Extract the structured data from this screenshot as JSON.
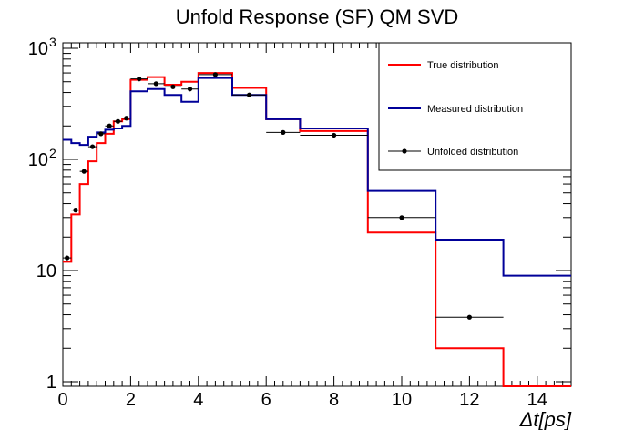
{
  "chart_data": {
    "type": "step",
    "title": "Unfold Response (SF) QM SVD",
    "xlabel": "Δt[ps]",
    "ylabel": "",
    "xlim": [
      0,
      15
    ],
    "ylim": [
      0.9,
      1100
    ],
    "yscale": "log",
    "x_ticks": [
      "0",
      "2",
      "4",
      "6",
      "8",
      "10",
      "12",
      "14"
    ],
    "y_ticks": [
      "1",
      "10",
      "10^2",
      "10^3"
    ],
    "legend_position": "top-right",
    "series": [
      {
        "name": "True distribution",
        "color": "#ff0000",
        "style": "histogram",
        "bin_edges": [
          0,
          0.25,
          0.5,
          0.75,
          1.0,
          1.25,
          1.5,
          1.75,
          2.0,
          2.5,
          3.0,
          3.5,
          4.0,
          5.0,
          6.0,
          7.0,
          9.0,
          11.0,
          13.0,
          15.0
        ],
        "values": [
          12,
          32,
          60,
          96,
          140,
          170,
          220,
          230,
          520,
          550,
          470,
          500,
          600,
          440,
          230,
          180,
          22,
          2,
          0.9
        ]
      },
      {
        "name": "Measured distribution",
        "color": "#000099",
        "style": "histogram",
        "bin_edges": [
          0,
          0.25,
          0.5,
          0.75,
          1.0,
          1.25,
          1.5,
          1.75,
          2.0,
          2.5,
          3.0,
          3.5,
          4.0,
          5.0,
          6.0,
          7.0,
          9.0,
          11.0,
          13.0,
          15.0
        ],
        "values": [
          150,
          140,
          135,
          160,
          175,
          185,
          190,
          200,
          410,
          430,
          380,
          330,
          540,
          380,
          230,
          190,
          52,
          19,
          9
        ]
      },
      {
        "name": "Unfolded distribution",
        "color": "#000000",
        "style": "markers",
        "x": [
          0.125,
          0.375,
          0.625,
          0.875,
          1.125,
          1.375,
          1.625,
          1.875,
          2.25,
          2.75,
          3.25,
          3.75,
          4.5,
          5.5,
          6.5,
          8.0,
          10.0,
          12.0
        ],
        "xerr": [
          0.125,
          0.125,
          0.125,
          0.125,
          0.125,
          0.125,
          0.125,
          0.125,
          0.25,
          0.25,
          0.25,
          0.25,
          0.5,
          0.5,
          0.5,
          1.0,
          1.0,
          1.0
        ],
        "values": [
          13,
          35,
          78,
          130,
          170,
          200,
          220,
          235,
          530,
          480,
          450,
          430,
          580,
          380,
          175,
          165,
          30,
          3.8
        ]
      }
    ]
  }
}
